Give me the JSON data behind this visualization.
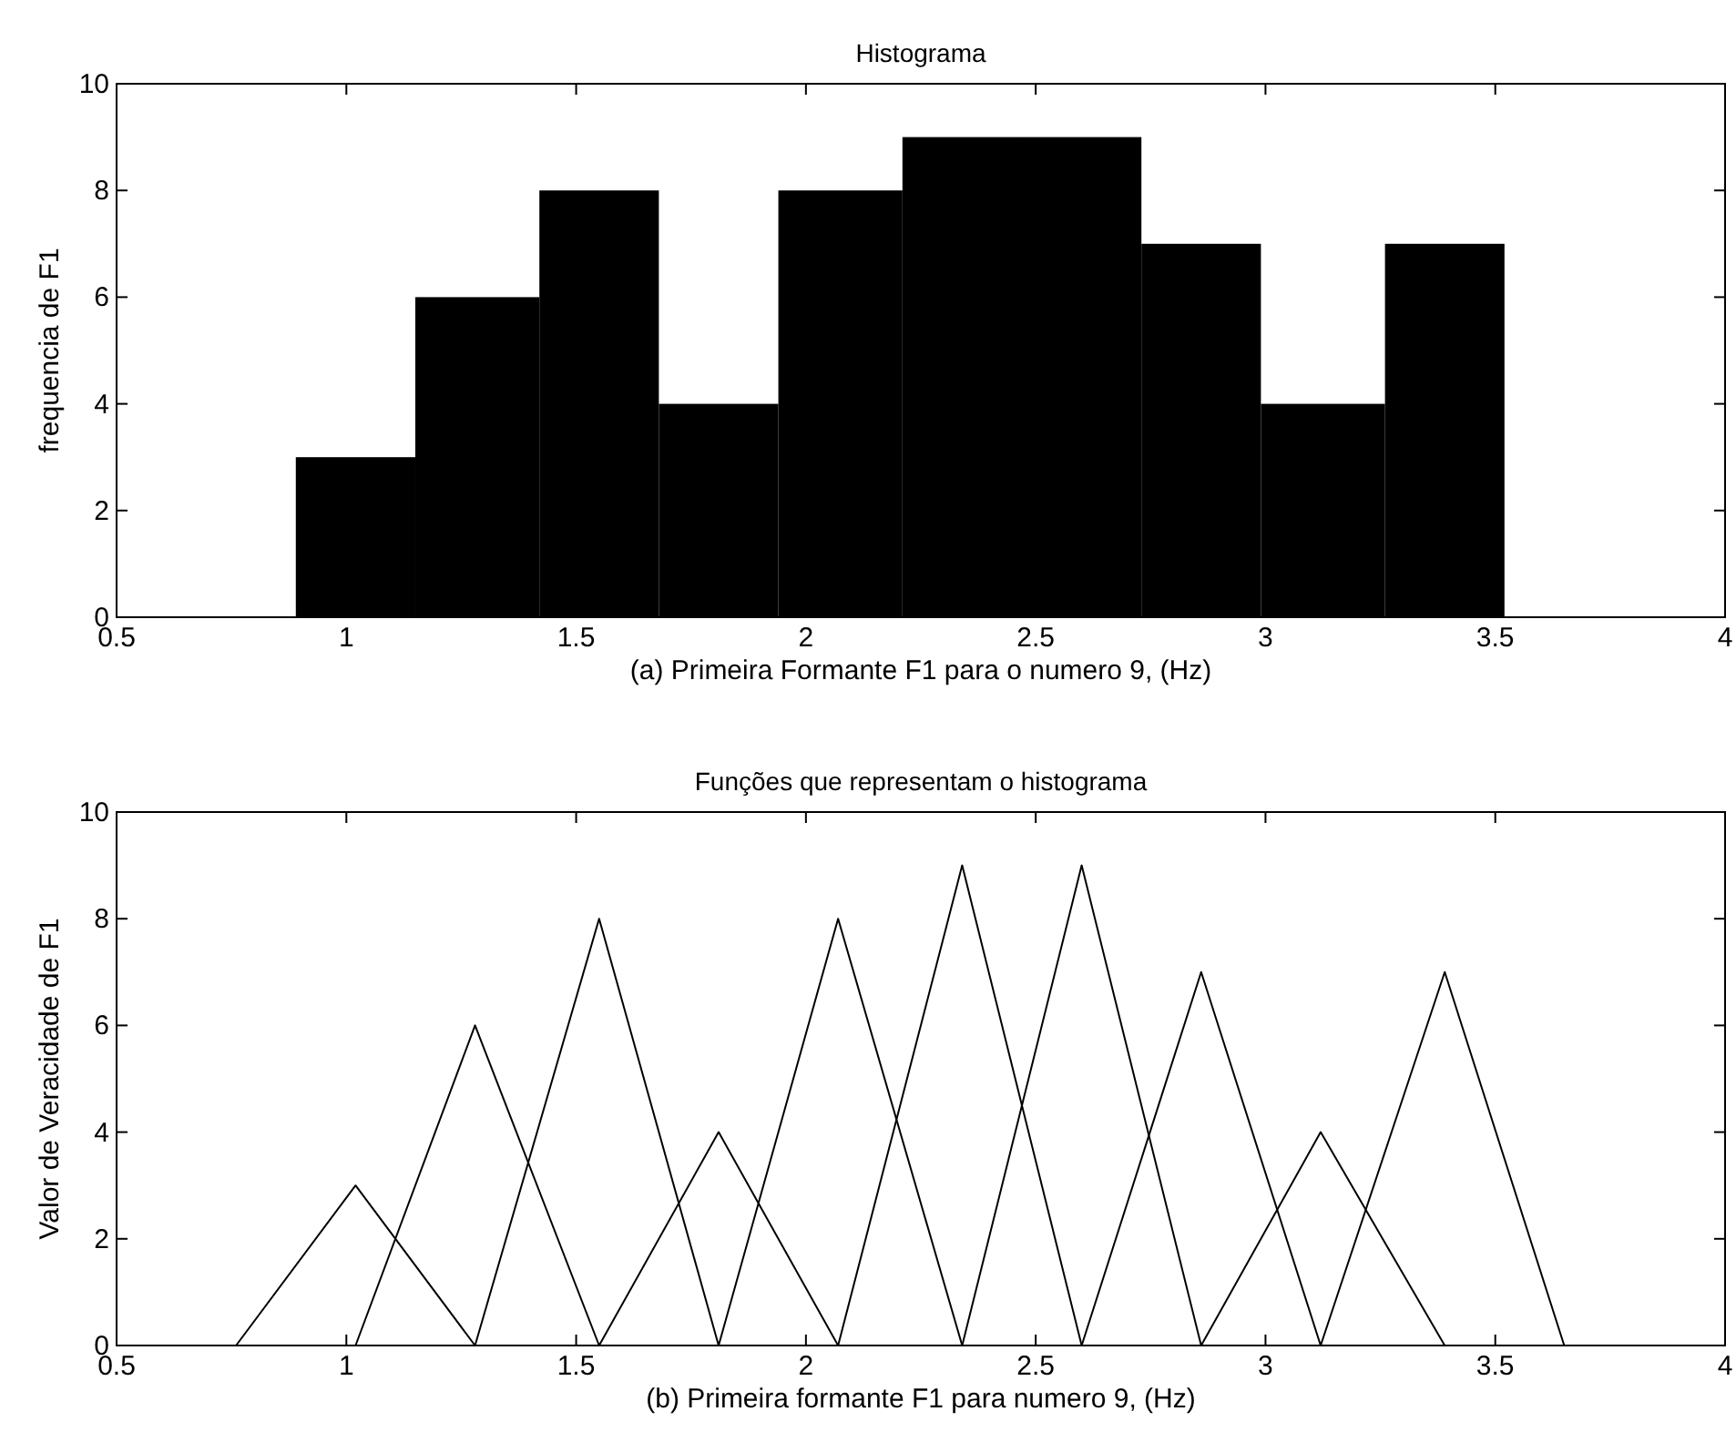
{
  "chart_data": [
    {
      "type": "histogram",
      "title": "Histograma",
      "xlabel": "(a) Primeira Formante F1 para o  numero 9, (Hz)",
      "ylabel": "frequencia de F1",
      "bins": [
        0.89,
        1.15,
        1.42,
        1.68,
        1.94,
        2.21,
        2.47,
        2.73,
        2.99,
        3.26,
        3.52
      ],
      "values": [
        3,
        6,
        8,
        4,
        8,
        9,
        9,
        7,
        4,
        7
      ],
      "color": "#000000",
      "xlim": [
        0.5,
        4
      ],
      "xticks": [
        0.5,
        1,
        1.5,
        2,
        2.5,
        3,
        3.5,
        4
      ],
      "ylim": [
        0,
        10
      ],
      "yticks": [
        0,
        2,
        4,
        6,
        8,
        10
      ]
    },
    {
      "type": "line",
      "title": "Funções que representam o histograma",
      "xlabel": "(b) Primeira formante F1 para numero 9, (Hz)",
      "ylabel": "Valor de Veracidade de F1",
      "series": [
        {
          "color": "#000000",
          "x": [
            0.76,
            1.02,
            1.28
          ],
          "values": [
            0,
            3,
            0
          ]
        },
        {
          "color": "#000000",
          "x": [
            1.02,
            1.28,
            1.55
          ],
          "values": [
            0,
            6,
            0
          ]
        },
        {
          "color": "#000000",
          "x": [
            1.28,
            1.55,
            1.81
          ],
          "values": [
            0,
            8,
            0
          ]
        },
        {
          "color": "#000000",
          "x": [
            1.55,
            1.81,
            2.07
          ],
          "values": [
            0,
            4,
            0
          ]
        },
        {
          "color": "#000000",
          "x": [
            1.81,
            2.07,
            2.34
          ],
          "values": [
            0,
            8,
            0
          ]
        },
        {
          "color": "#000000",
          "x": [
            2.07,
            2.34,
            2.6
          ],
          "values": [
            0,
            9,
            0
          ]
        },
        {
          "color": "#000000",
          "x": [
            2.34,
            2.6,
            2.86
          ],
          "values": [
            0,
            9,
            0
          ]
        },
        {
          "color": "#000000",
          "x": [
            2.6,
            2.86,
            3.12
          ],
          "values": [
            0,
            7,
            0
          ]
        },
        {
          "color": "#000000",
          "x": [
            2.86,
            3.12,
            3.39
          ],
          "values": [
            0,
            4,
            0
          ]
        },
        {
          "color": "#000000",
          "x": [
            3.12,
            3.39,
            3.65
          ],
          "values": [
            0,
            7,
            0
          ]
        }
      ],
      "xlim": [
        0.5,
        4
      ],
      "xticks": [
        0.5,
        1,
        1.5,
        2,
        2.5,
        3,
        3.5,
        4
      ],
      "ylim": [
        0,
        10
      ],
      "yticks": [
        0,
        2,
        4,
        6,
        8,
        10
      ]
    }
  ]
}
